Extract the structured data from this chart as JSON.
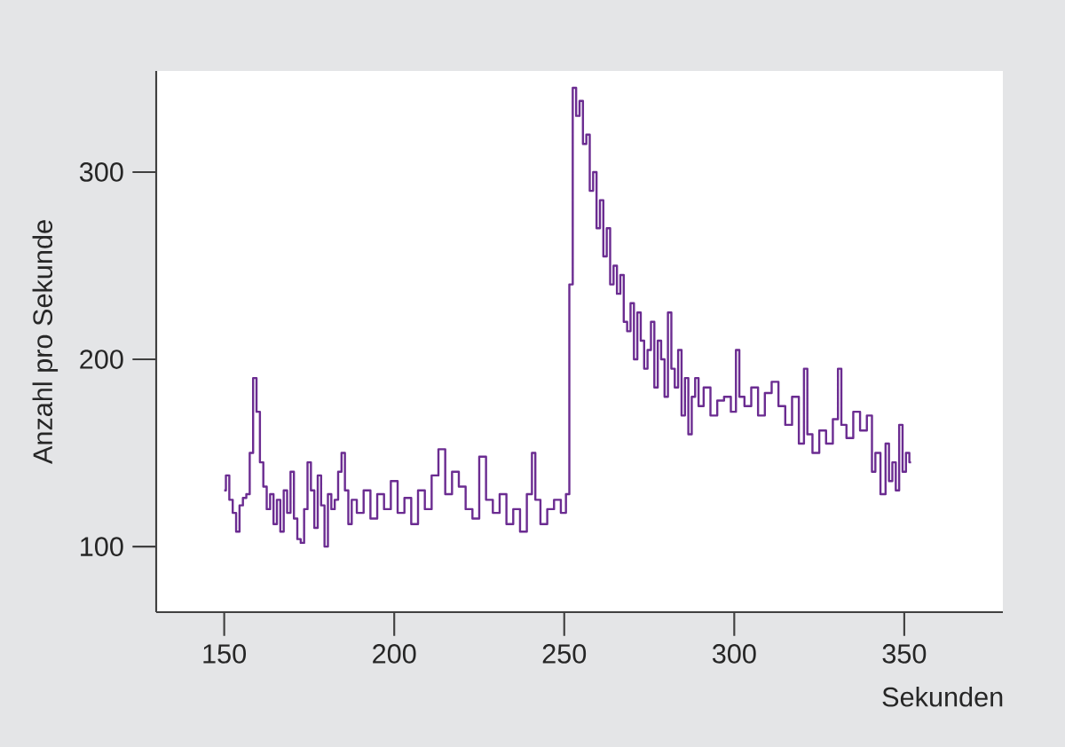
{
  "chart_data": {
    "type": "step",
    "xlabel": "Sekunden",
    "ylabel": "Anzahl pro Sekunde",
    "xlim": [
      130,
      379
    ],
    "ylim": [
      65,
      354
    ],
    "xticks": [
      150,
      200,
      250,
      300,
      350
    ],
    "yticks": [
      100,
      200,
      300
    ],
    "series": [
      {
        "color": "#6b2c91",
        "x": [
          150,
          151,
          152,
          153,
          154,
          155,
          156,
          157,
          158,
          159,
          160,
          161,
          162,
          163,
          164,
          165,
          166,
          167,
          168,
          169,
          170,
          171,
          172,
          173,
          174,
          175,
          176,
          177,
          178,
          179,
          180,
          181,
          182,
          183,
          184,
          185,
          186,
          187,
          188,
          190,
          192,
          194,
          196,
          198,
          200,
          202,
          204,
          206,
          208,
          210,
          212,
          214,
          216,
          218,
          220,
          222,
          224,
          226,
          228,
          230,
          232,
          234,
          236,
          238,
          240,
          241,
          242,
          244,
          246,
          248,
          250,
          251,
          252,
          253,
          254,
          255,
          256,
          257,
          258,
          259,
          260,
          261,
          262,
          263,
          264,
          265,
          266,
          267,
          268,
          269,
          270,
          271,
          272,
          273,
          274,
          275,
          276,
          277,
          278,
          279,
          280,
          281,
          282,
          283,
          284,
          285,
          286,
          287,
          288,
          289,
          290,
          292,
          294,
          296,
          298,
          300,
          301,
          302,
          304,
          306,
          308,
          310,
          312,
          314,
          316,
          318,
          320,
          321,
          322,
          324,
          326,
          328,
          330,
          331,
          332,
          334,
          336,
          338,
          340,
          341,
          342,
          344,
          345,
          346,
          347,
          348,
          349,
          350,
          351,
          352
        ],
        "values": [
          130,
          138,
          125,
          118,
          108,
          122,
          126,
          128,
          150,
          190,
          172,
          145,
          132,
          120,
          128,
          112,
          125,
          108,
          130,
          118,
          140,
          115,
          104,
          102,
          120,
          145,
          130,
          110,
          138,
          122,
          100,
          128,
          120,
          125,
          140,
          150,
          130,
          112,
          125,
          118,
          130,
          115,
          128,
          120,
          135,
          118,
          126,
          112,
          130,
          120,
          138,
          152,
          128,
          140,
          132,
          120,
          115,
          148,
          125,
          118,
          128,
          112,
          120,
          108,
          128,
          150,
          125,
          112,
          120,
          125,
          118,
          128,
          240,
          345,
          330,
          338,
          315,
          320,
          290,
          300,
          270,
          285,
          255,
          270,
          240,
          250,
          235,
          245,
          220,
          215,
          230,
          200,
          225,
          210,
          195,
          205,
          220,
          185,
          210,
          200,
          180,
          225,
          195,
          185,
          205,
          170,
          190,
          160,
          180,
          190,
          175,
          185,
          170,
          178,
          180,
          172,
          205,
          180,
          175,
          185,
          170,
          182,
          188,
          175,
          165,
          180,
          155,
          195,
          160,
          150,
          162,
          155,
          168,
          195,
          165,
          158,
          172,
          162,
          170,
          140,
          150,
          128,
          155,
          135,
          145,
          130,
          165,
          140,
          150,
          145
        ]
      }
    ]
  }
}
